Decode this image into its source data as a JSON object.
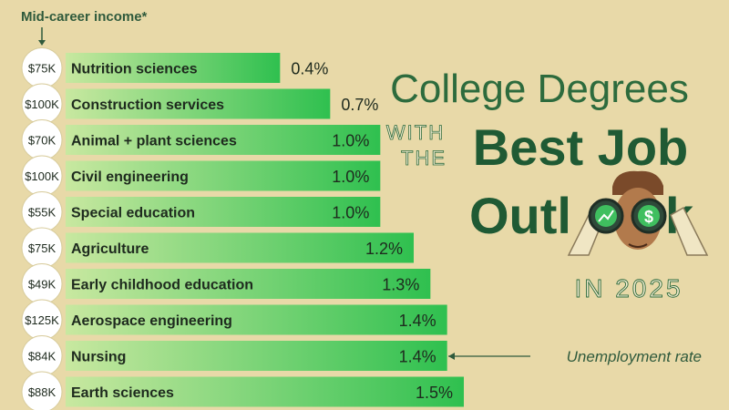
{
  "header": {
    "income_label": "Mid-career income*"
  },
  "title": {
    "line1": "College Degrees",
    "with": "WITH",
    "the": "THE",
    "best_job": "Best Job",
    "outlook_a": "Outl",
    "outlook_b": "k",
    "year": "IN 2025"
  },
  "annotation": {
    "unemployment_label": "Unemployment rate"
  },
  "colors": {
    "background": "#e8d9a8",
    "bar_start": "#c8e8a0",
    "bar_end": "#2fc04f",
    "text_dark": "#1e2a1e",
    "title_green": "#2d6b3d",
    "circle_fill": "#ffffff"
  },
  "chart_data": {
    "type": "bar",
    "orientation": "horizontal",
    "title": "College Degrees with the Best Job Outlook in 2025",
    "value_label": "Unemployment rate",
    "income_label": "Mid-career income*",
    "categories": [
      "Nutrition sciences",
      "Construction services",
      "Animal + plant sciences",
      "Civil engineering",
      "Special education",
      "Agriculture",
      "Early childhood education",
      "Aerospace engineering",
      "Nursing",
      "Earth sciences"
    ],
    "incomes": [
      "$75K",
      "$100K",
      "$70K",
      "$100K",
      "$55K",
      "$75K",
      "$49K",
      "$125K",
      "$84K",
      "$88K"
    ],
    "values": [
      0.4,
      0.7,
      1.0,
      1.0,
      1.0,
      1.2,
      1.3,
      1.4,
      1.4,
      1.5
    ],
    "value_labels": [
      "0.4%",
      "0.7%",
      "1.0%",
      "1.0%",
      "1.0%",
      "1.2%",
      "1.3%",
      "1.4%",
      "1.4%",
      "1.5%"
    ],
    "xlim": [
      0,
      1.5
    ]
  }
}
